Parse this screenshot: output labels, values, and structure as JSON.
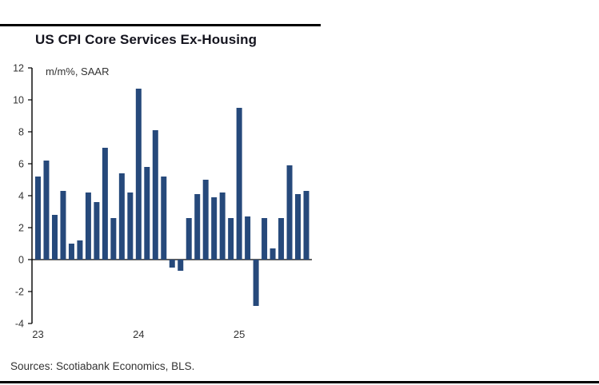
{
  "header": {
    "title": "US CPI Core Services Ex-Housing"
  },
  "footer": {
    "sources": "Sources: Scotiabank Economics, BLS."
  },
  "chart_data": {
    "type": "bar",
    "title": "US CPI Core Services Ex-Housing",
    "axis_note": "m/m%, SAAR",
    "xlabel": "",
    "ylabel": "m/m%, SAAR",
    "categories": [
      "Jan-23",
      "Feb-23",
      "Mar-23",
      "Apr-23",
      "May-23",
      "Jun-23",
      "Jul-23",
      "Aug-23",
      "Sep-23",
      "Oct-23",
      "Nov-23",
      "Dec-23",
      "Jan-24",
      "Feb-24",
      "Mar-24",
      "Apr-24",
      "May-24",
      "Jun-24",
      "Jul-24",
      "Aug-24",
      "Sep-24",
      "Oct-24",
      "Nov-24",
      "Dec-24",
      "Jan-25",
      "Feb-25",
      "Mar-25",
      "Apr-25",
      "May-25",
      "Jun-25",
      "Jul-25",
      "Aug-25",
      "Sep-25"
    ],
    "values": [
      5.2,
      6.2,
      2.8,
      4.3,
      1.0,
      1.2,
      4.2,
      3.6,
      7.0,
      2.6,
      5.4,
      4.2,
      10.7,
      5.8,
      8.1,
      5.2,
      -0.5,
      -0.7,
      2.6,
      4.1,
      5.0,
      3.9,
      4.2,
      2.6,
      9.5,
      2.7,
      -2.9,
      2.6,
      0.7,
      2.6,
      5.9,
      4.1,
      4.3
    ],
    "ylim": [
      -4,
      12
    ],
    "ytick_step": 2,
    "ytick_labels": [
      "12",
      "10",
      "8",
      "6",
      "4",
      "2",
      "0",
      "-2",
      "-4"
    ],
    "xtick_labels": [
      {
        "index": 0,
        "label": "23"
      },
      {
        "index": 12,
        "label": "24"
      },
      {
        "index": 24,
        "label": "25"
      }
    ],
    "bar_color": "#26497B",
    "axis_color": "#000000",
    "grid": false,
    "legend": false
  }
}
